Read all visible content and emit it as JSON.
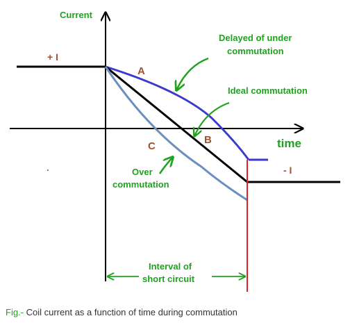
{
  "labels": {
    "y_axis": "Current",
    "x_axis": "time",
    "plus_i": "+ I",
    "minus_i": "- I",
    "curve_a": "A",
    "curve_b": "B",
    "curve_c": "C",
    "dot": "."
  },
  "annotations": {
    "delayed_line1": "Delayed of under",
    "delayed_line2": "commutation",
    "ideal": "Ideal commutation",
    "over_line1": "Over",
    "over_line2": "commutation",
    "interval_line1": "Interval of",
    "interval_line2": "short circuit"
  },
  "caption": {
    "prefix": "Fig.-",
    "text": " Coil current as a function of time during commutation"
  },
  "colors": {
    "delayed_curve": "#3a3acc",
    "ideal_line": "#000000",
    "over_curve": "#6a8fbf",
    "interval_end": "#e02020",
    "annotation": "#1fa31f",
    "curve_letters": "#a0522d"
  }
}
